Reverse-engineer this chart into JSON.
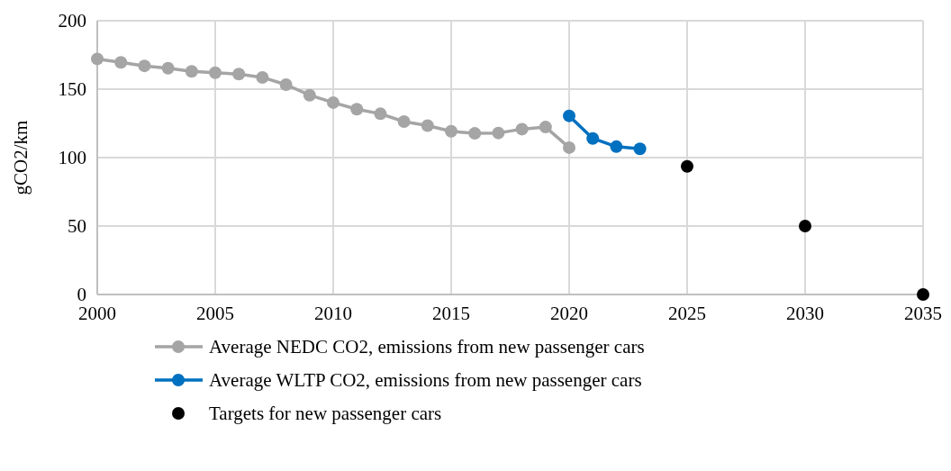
{
  "chart_data": {
    "type": "line",
    "ylabel": "gCO2/km",
    "xlim": [
      2000,
      2035
    ],
    "xticks": [
      2000,
      2005,
      2010,
      2015,
      2020,
      2025,
      2030,
      2035
    ],
    "ylim": [
      0,
      200
    ],
    "yticks": [
      0,
      50,
      100,
      150,
      200
    ],
    "grid": true,
    "legend": "bottom",
    "marker": "circle",
    "series": [
      {
        "name": "Average NEDC CO2, emissions from new passenger cars",
        "color": "#a5a5a5",
        "x": [
          2000,
          2001,
          2002,
          2003,
          2004,
          2005,
          2006,
          2007,
          2008,
          2009,
          2010,
          2011,
          2012,
          2013,
          2014,
          2015,
          2016,
          2017,
          2018,
          2019,
          2020
        ],
        "values": [
          172.1,
          169.6,
          167,
          165.3,
          163,
          162,
          161,
          158.6,
          153.3,
          145.6,
          140.2,
          135.4,
          132,
          126.3,
          123.4,
          119.2,
          117.7,
          118,
          120.8,
          122.3,
          107.3
        ]
      },
      {
        "name": "Average WLTP  CO2, emissions from new passenger cars",
        "color": "#0070c0",
        "x": [
          2020,
          2021,
          2022,
          2023
        ],
        "values": [
          130.5,
          114,
          108,
          106.4
        ]
      },
      {
        "name": "Targets for new passenger cars",
        "type": "scatter",
        "color": "#000000",
        "x": [
          2025,
          2030,
          2035
        ],
        "values": [
          93.6,
          50,
          0
        ]
      }
    ]
  }
}
